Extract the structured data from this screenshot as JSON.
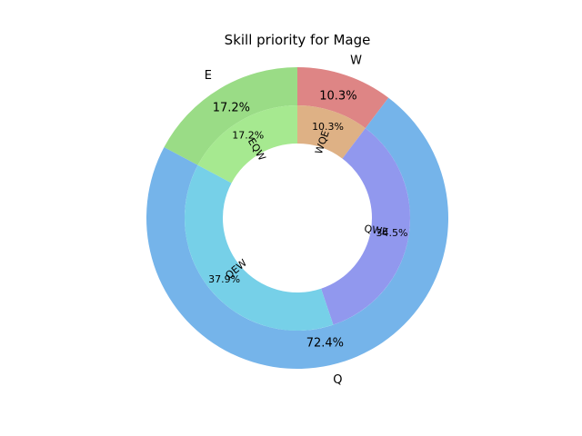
{
  "chart_data": {
    "type": "pie",
    "subtype": "nested-donut",
    "title": "Skill priority for Mage",
    "outer": {
      "labels": [
        "W",
        "Q",
        "E"
      ],
      "percent_labels": [
        "10.3%",
        "72.4%",
        "17.2%"
      ],
      "values": [
        10.3,
        72.4,
        17.2
      ],
      "colors": [
        "#de8585",
        "#75b4ea",
        "#9adc86"
      ]
    },
    "inner": {
      "labels": [
        "WQE",
        "QWE",
        "QEW",
        "EQW"
      ],
      "percent_labels": [
        "10.3%",
        "34.5%",
        "37.9%",
        "17.2%"
      ],
      "values": [
        10.3,
        34.5,
        37.9,
        17.2
      ],
      "colors": [
        "#deb185",
        "#9198ee",
        "#76d0e8",
        "#a6e990"
      ]
    }
  }
}
